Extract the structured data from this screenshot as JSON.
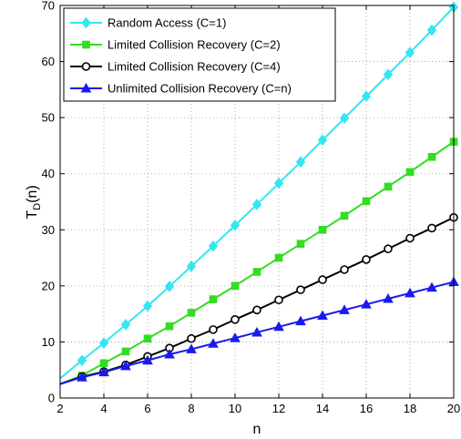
{
  "chart_data": {
    "type": "line",
    "xlabel": "n",
    "ylabel_main": "T",
    "ylabel_sub": "D",
    "ylabel_tail": "(n)",
    "xlim": [
      2,
      20
    ],
    "ylim": [
      0,
      70
    ],
    "xticks": [
      2,
      4,
      6,
      8,
      10,
      12,
      14,
      16,
      18,
      20
    ],
    "yticks": [
      0,
      10,
      20,
      30,
      40,
      50,
      60,
      70
    ],
    "grid": true,
    "legend_position": "top-left",
    "x": [
      2,
      3,
      4,
      5,
      6,
      7,
      8,
      9,
      10,
      11,
      12,
      13,
      14,
      15,
      16,
      17,
      18,
      19,
      20
    ],
    "series": [
      {
        "name": "Random Access (C=1)",
        "color": "#33e6f0",
        "marker": "diamond",
        "values": [
          3.5,
          6.7,
          9.8,
          13.1,
          16.4,
          19.9,
          23.5,
          27.1,
          30.8,
          34.5,
          38.3,
          42.1,
          46.0,
          49.9,
          53.8,
          57.7,
          61.6,
          65.6,
          69.7
        ]
      },
      {
        "name": "Limited Collision Recovery (C=2)",
        "color": "#33dd22",
        "marker": "square",
        "values": [
          2.5,
          4.0,
          6.2,
          8.3,
          10.6,
          12.8,
          15.2,
          17.6,
          20.0,
          22.5,
          25.0,
          27.5,
          30.0,
          32.5,
          35.1,
          37.7,
          40.3,
          43.0,
          45.7
        ]
      },
      {
        "name": "Limited Collision Recovery (C=4)",
        "color": "#000000",
        "marker": "circle",
        "values": [
          2.5,
          3.8,
          4.7,
          5.9,
          7.4,
          8.9,
          10.6,
          12.2,
          14.0,
          15.7,
          17.5,
          19.3,
          21.1,
          22.9,
          24.7,
          26.6,
          28.5,
          30.3,
          32.2
        ]
      },
      {
        "name": "Unlimited Collision Recovery (C=n)",
        "color": "#1a1aee",
        "marker": "triangle",
        "values": [
          2.5,
          3.7,
          4.6,
          5.7,
          6.7,
          7.8,
          8.7,
          9.7,
          10.7,
          11.7,
          12.7,
          13.7,
          14.7,
          15.7,
          16.7,
          17.7,
          18.7,
          19.7,
          20.7
        ]
      }
    ]
  }
}
